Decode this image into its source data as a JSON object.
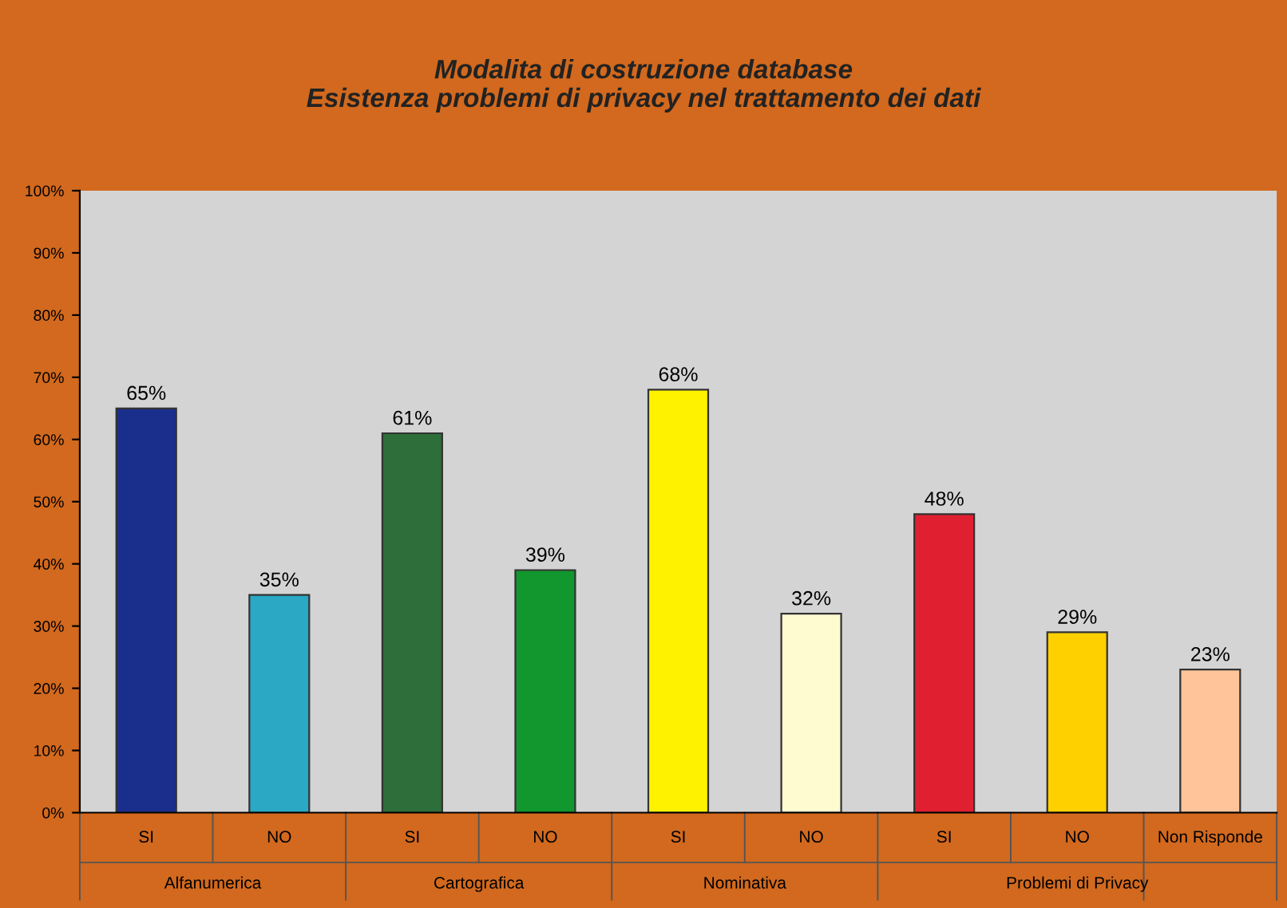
{
  "chart_data": {
    "type": "bar",
    "title": "Modalita di costruzione database\nEsistenza problemi di privacy nel trattamento dei dati",
    "categories": [
      "SI",
      "NO",
      "SI",
      "NO",
      "SI",
      "NO",
      "SI",
      "NO",
      "Non Risponde"
    ],
    "values": [
      65,
      35,
      61,
      39,
      68,
      32,
      48,
      29,
      23
    ],
    "colors": [
      "#1a2f8c",
      "#2aa8c4",
      "#2e6e3a",
      "#12962e",
      "#fff200",
      "#fffbd0",
      "#e02030",
      "#ffd000",
      "#ffc49a"
    ],
    "value_labels": [
      "65%",
      "35%",
      "61%",
      "39%",
      "68%",
      "32%",
      "48%",
      "29%",
      "23%"
    ],
    "annotations": [
      "Alfanumerica",
      "Cartografica",
      "Nominativa",
      "Problemi di Privacy"
    ],
    "ylim": [
      0,
      100
    ],
    "yticks": [
      {
        "value": 0,
        "label": "0%"
      },
      {
        "value": 10,
        "label": "10%"
      },
      {
        "value": 20,
        "label": "20%"
      },
      {
        "value": 30,
        "label": "30%"
      },
      {
        "value": 40,
        "label": "40%"
      },
      {
        "value": 50,
        "label": "50%"
      },
      {
        "value": 60,
        "label": "60%"
      },
      {
        "value": 70,
        "label": "70%"
      },
      {
        "value": 80,
        "label": "80%"
      },
      {
        "value": 90,
        "label": "90%"
      },
      {
        "value": 100,
        "label": "100%"
      }
    ],
    "grid": false,
    "legend": false
  }
}
